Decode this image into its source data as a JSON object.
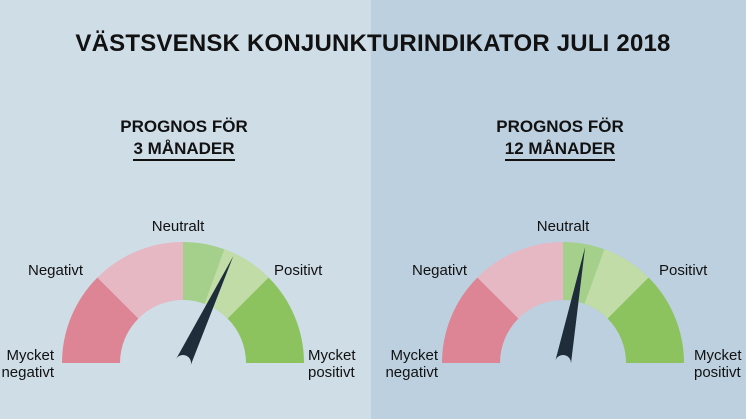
{
  "title": "VÄSTSVENSK KONJUNKTURINDIKATOR JULI 2018",
  "colors": {
    "bg_left": "#cfdde7",
    "bg_right": "#bdd0df",
    "very_negative": "#dd8595",
    "negative": "#e5b8c3",
    "neutral_positive": "#a4d08c",
    "positive": "#c1dca7",
    "very_positive": "#8cc35f",
    "hub": "#cfdde7",
    "needle": "#1f2d3a"
  },
  "gauges": [
    {
      "heading_line1": "PROGNOS FÖR",
      "heading_line2": "3 MÅNADER",
      "labels": {
        "very_negative": [
          "Mycket",
          "negativt"
        ],
        "negative": "Negativt",
        "neutral": "Neutralt",
        "positive": "Positivt",
        "very_positive": [
          "Mycket",
          "positivt"
        ]
      },
      "needle_value": 0.64
    },
    {
      "heading_line1": "PROGNOS FÖR",
      "heading_line2": "12 MÅNADER",
      "labels": {
        "very_negative": [
          "Mycket",
          "negativt"
        ],
        "negative": "Negativt",
        "neutral": "Neutralt",
        "positive": "Positivt",
        "very_positive": [
          "Mycket",
          "positivt"
        ]
      },
      "needle_value": 0.56
    }
  ]
}
